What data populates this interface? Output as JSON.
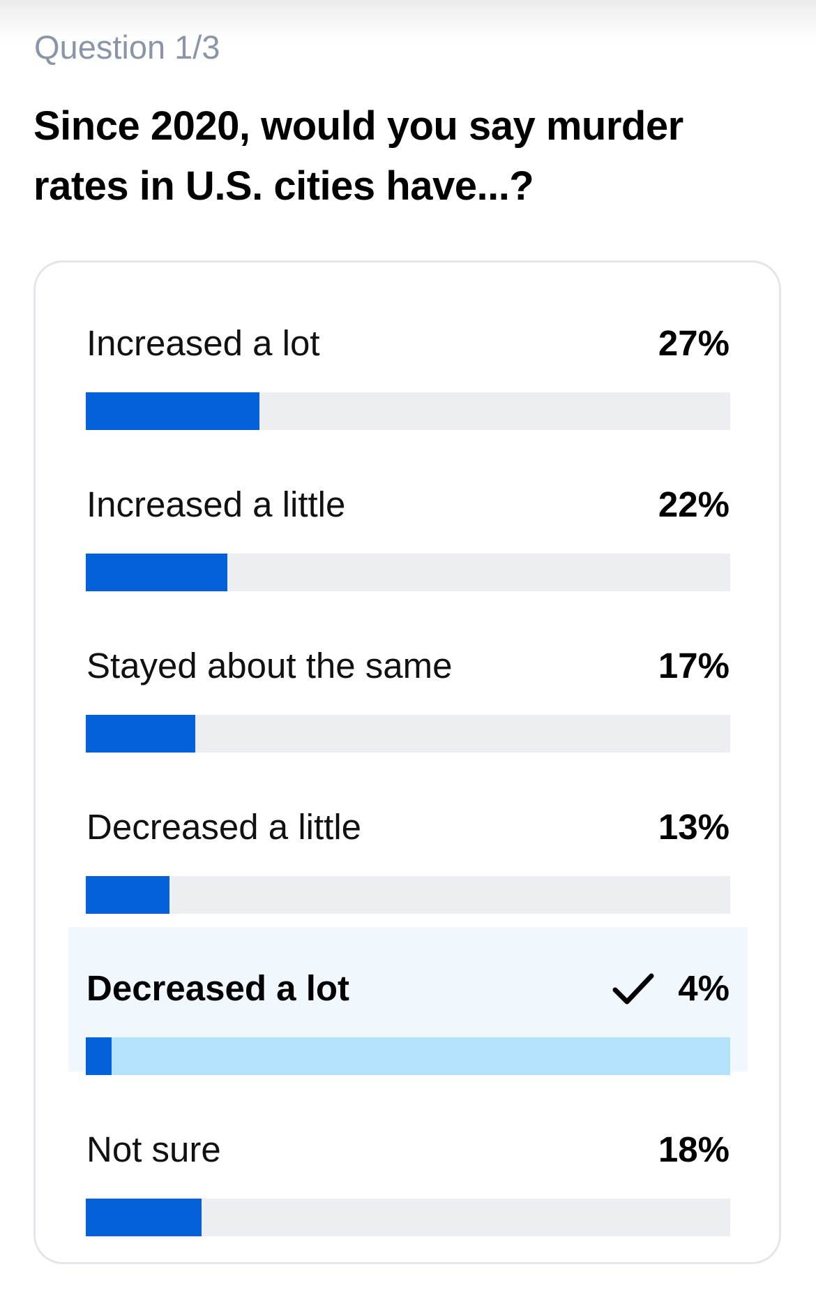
{
  "question": {
    "counter": "Question 1/3",
    "title": "Since 2020, would you say murder rates in U.S. cities have...?"
  },
  "colors": {
    "accent": "#0561d9",
    "track": "#eceef2",
    "selected_track": "#b5e2fb",
    "selected_background": "#f0f8fd"
  },
  "options": [
    {
      "label": "Increased a lot",
      "percent_label": "27%",
      "value": 27,
      "selected": false
    },
    {
      "label": "Increased a little",
      "percent_label": "22%",
      "value": 22,
      "selected": false
    },
    {
      "label": "Stayed about the same",
      "percent_label": "17%",
      "value": 17,
      "selected": false
    },
    {
      "label": "Decreased a little",
      "percent_label": "13%",
      "value": 13,
      "selected": false
    },
    {
      "label": "Decreased a lot",
      "percent_label": "4%",
      "value": 4,
      "selected": true,
      "icon": "check-icon"
    },
    {
      "label": "Not sure",
      "percent_label": "18%",
      "value": 18,
      "selected": false
    }
  ]
}
